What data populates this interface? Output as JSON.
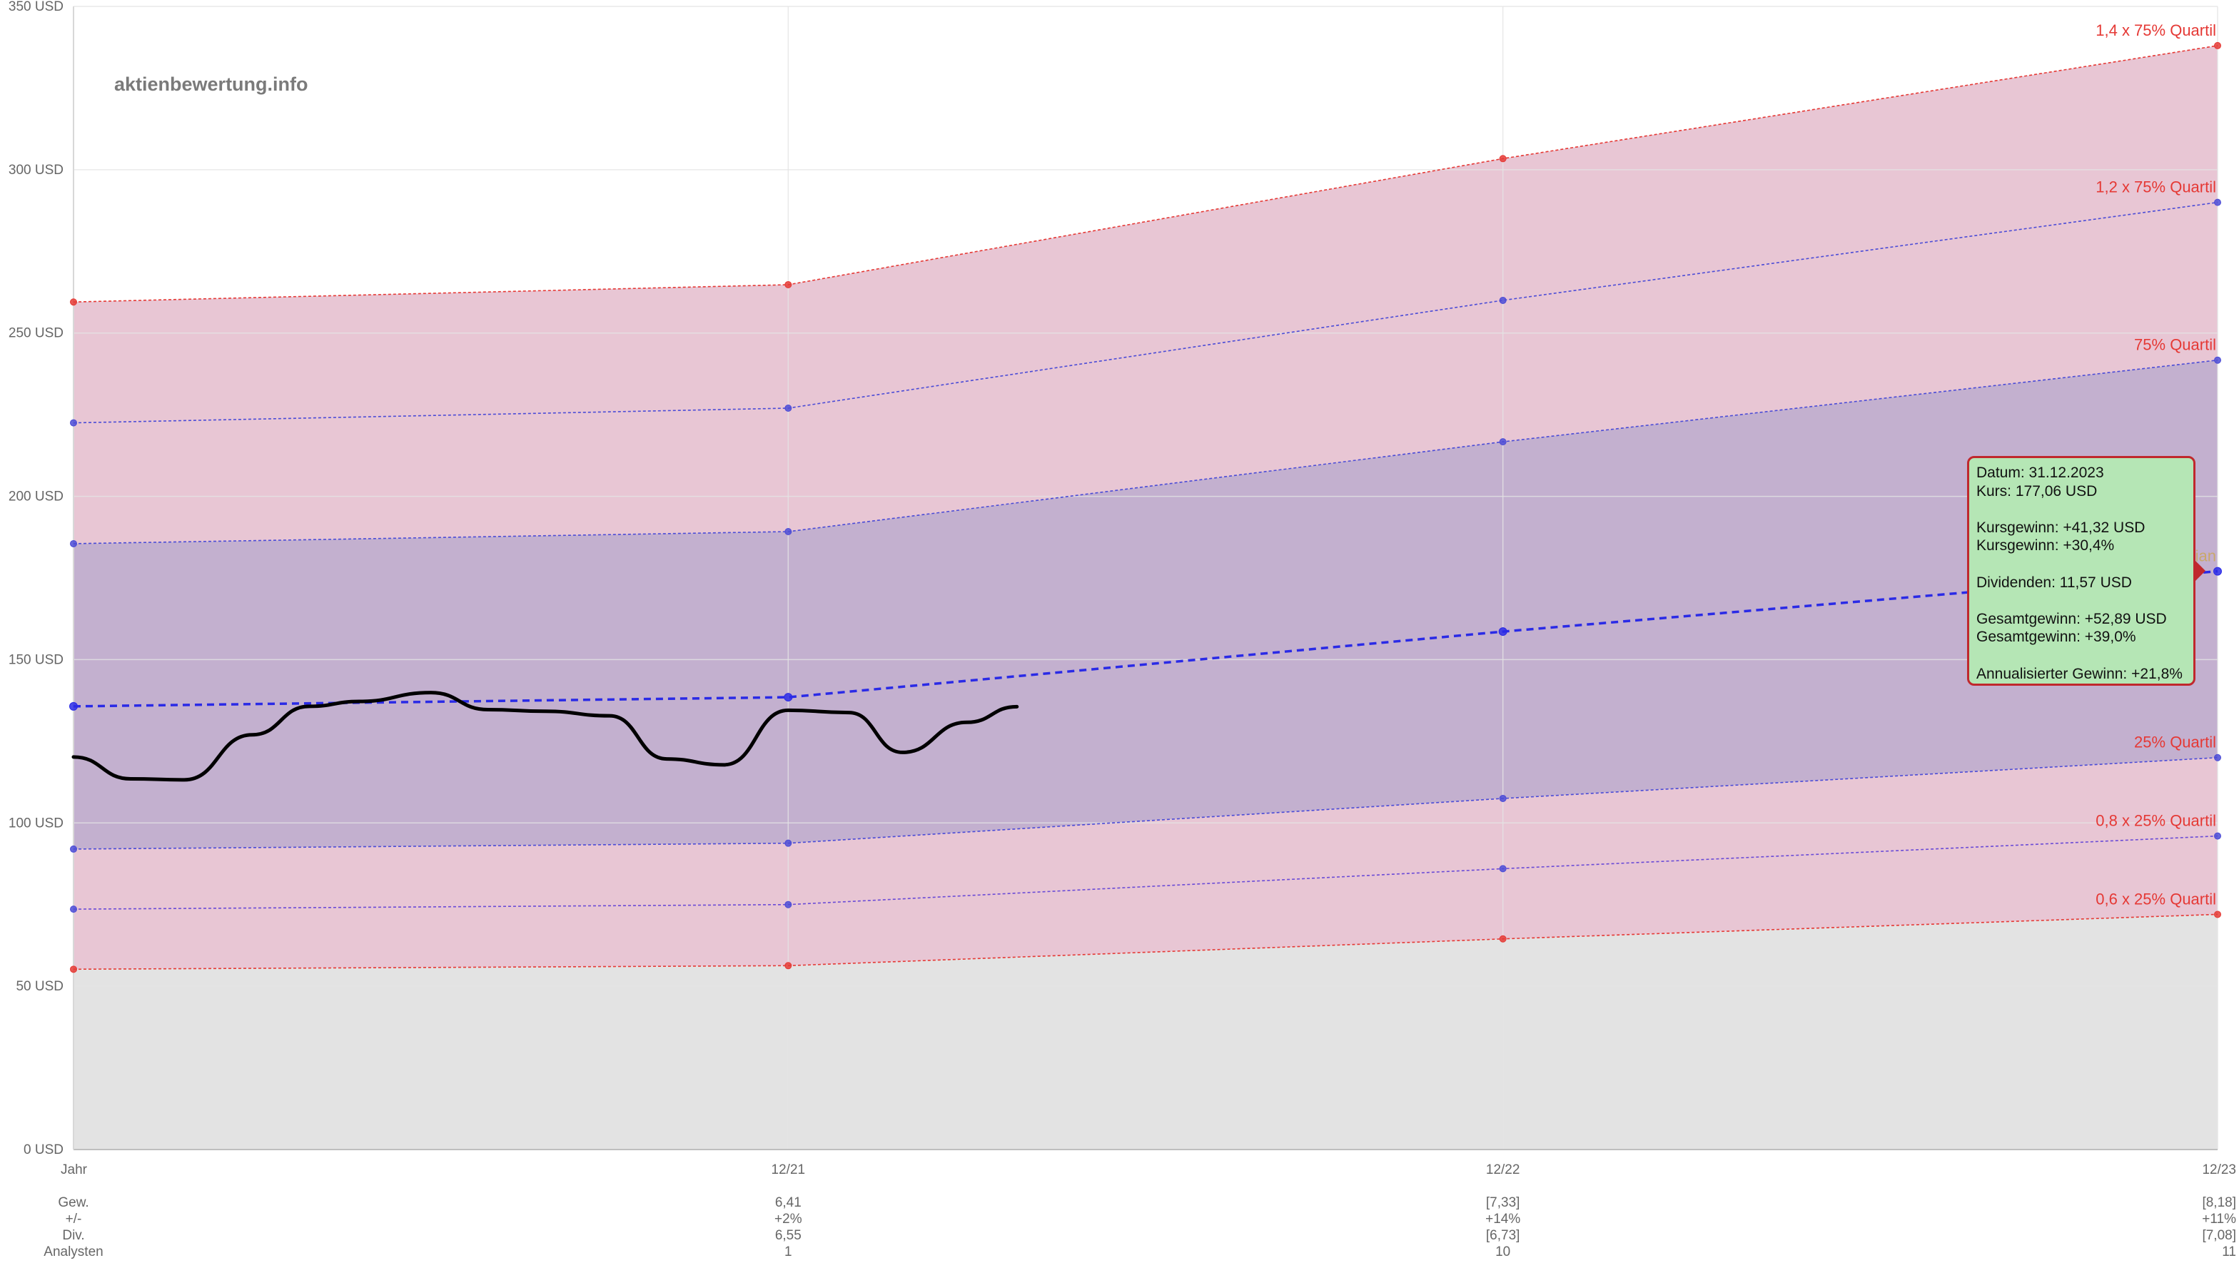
{
  "chart_data": {
    "type": "area",
    "watermark": "aktienbewertung.info",
    "y_unit": "USD",
    "ylim": [
      0,
      350
    ],
    "y_ticks": [
      0,
      50,
      100,
      150,
      200,
      250,
      300,
      350
    ],
    "y_tick_labels": [
      "0 USD",
      "50 USD",
      "100 USD",
      "150 USD",
      "200 USD",
      "250 USD",
      "300 USD",
      "350 USD"
    ],
    "x_labels": [
      "Jahr",
      "12/21",
      "12/22",
      "12/23"
    ],
    "grid": true,
    "series": [
      {
        "name": "1,4 x 75% Quartil",
        "values": [
          259.5,
          264.8,
          303.4,
          338.0
        ],
        "color": "#e53935",
        "dot": "#e53935"
      },
      {
        "name": "1,2 x 75% Quartil",
        "values": [
          222.5,
          227.0,
          260.0,
          290.0
        ],
        "color": "#4b4bd6",
        "dot": "#4b4bd6"
      },
      {
        "name": "75% Quartil",
        "values": [
          185.5,
          189.2,
          216.7,
          241.7
        ],
        "color": "#4b4bd6",
        "dot": "#4b4bd6"
      },
      {
        "name": "Median",
        "values": [
          135.7,
          138.5,
          158.6,
          177.06
        ],
        "color": "#2a2ae6",
        "dot": "#2a2ae6",
        "dashed": true
      },
      {
        "name": "25% Quartil",
        "values": [
          92.0,
          93.8,
          107.5,
          120.0
        ],
        "color": "#4b4bd6",
        "dot": "#4b4bd6"
      },
      {
        "name": "0,8 x 25% Quartil",
        "values": [
          73.6,
          75.0,
          86.0,
          96.0
        ],
        "color": "#6a4bd6",
        "dot": "#4b4bd6"
      },
      {
        "name": "0,6 x 25% Quartil",
        "values": [
          55.2,
          56.3,
          64.5,
          72.0
        ],
        "color": "#e53935",
        "dot": "#e53935"
      }
    ],
    "price_series": {
      "name": "Kurs",
      "x": [
        0,
        0.08,
        0.155,
        0.25,
        0.33,
        0.4,
        0.5,
        0.58,
        0.66,
        0.75,
        0.83,
        0.91,
        1.0,
        1.085,
        1.16,
        1.25,
        1.32
      ],
      "values": [
        120.2,
        113.5,
        113.2,
        127.0,
        135.7,
        137.2,
        139.9,
        134.7,
        134.2,
        132.8,
        119.6,
        117.8,
        134.5,
        133.8,
        121.6,
        130.8,
        135.6
      ]
    },
    "row_labels": [
      "Gew.",
      "+/-",
      "Div.",
      "Analysten"
    ],
    "table": [
      [
        "6,41",
        "+2%",
        "6,55",
        "1"
      ],
      [
        "[7,33]",
        "+14%",
        "[6,73]",
        "10"
      ],
      [
        "[8,18]",
        "+11%",
        "[7,08]",
        "11"
      ]
    ],
    "tooltip": {
      "lines": [
        "Datum: 31.12.2023",
        "Kurs: 177,06 USD",
        "",
        "Kursgewinn: +41,32 USD",
        "Kursgewinn: +30,4%",
        "",
        "Dividenden: 11,57 USD",
        "",
        "Gesamtgewinn: +52,89 USD",
        "Gesamtgewinn: +39,0%",
        "",
        "Annualisierter Gewinn: +21,8%"
      ]
    },
    "colors": {
      "outer_band": "#e8c6d4",
      "inner_band": "#c3b0cf",
      "lower_area": "#e3e3e3",
      "grid": "#e4e4e4",
      "label_red": "#e53935",
      "median_label": "#c9a86b",
      "price_line": "#000000",
      "axis_text": "#666666"
    }
  }
}
